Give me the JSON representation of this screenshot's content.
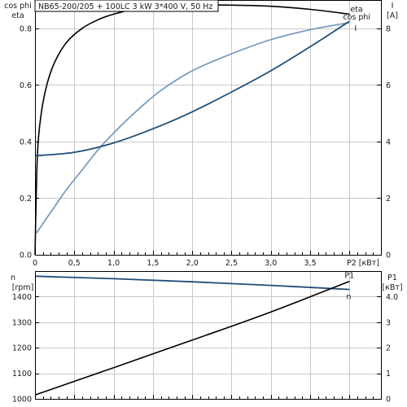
{
  "title": "NB65-200/205 + 100LC  3 kW  3*400 V, 50 Hz",
  "colors": {
    "eta": "#000000",
    "cosphi": "#7a9cc0",
    "current": "#1f4e79",
    "speed": "#1f4e79",
    "power": "#000000",
    "grid": "#c8c8c8"
  },
  "chart_data": [
    {
      "type": "line",
      "xlabel": "P2 [кВт]",
      "xlim": [
        0,
        4.4
      ],
      "x_ticks": [
        "0",
        "0,5",
        "1,0",
        "1,5",
        "2,0",
        "2,5",
        "3,0",
        "3,5"
      ],
      "ylabel_left": [
        "cos phi",
        "eta"
      ],
      "ylim_left": [
        0,
        0.9
      ],
      "y_ticks_left": [
        "0.0",
        "0.2",
        "0.4",
        "0.6",
        "0.8"
      ],
      "ylabel_right": [
        "I",
        "[A]"
      ],
      "ylim_right": [
        0,
        9
      ],
      "y_ticks_right": [
        "0",
        "2",
        "4",
        "6",
        "8"
      ],
      "grid": true,
      "series": [
        {
          "name": "eta",
          "axis": "left",
          "x": [
            0,
            0.03,
            0.08,
            0.15,
            0.25,
            0.4,
            0.6,
            0.8,
            1.0,
            1.3,
            1.6,
            2.0,
            2.5,
            3.0,
            3.5,
            4.0
          ],
          "y": [
            0,
            0.35,
            0.5,
            0.6,
            0.68,
            0.75,
            0.8,
            0.83,
            0.85,
            0.87,
            0.878,
            0.882,
            0.882,
            0.878,
            0.867,
            0.85
          ]
        },
        {
          "name": "cos phi",
          "axis": "left",
          "x": [
            0,
            0.2,
            0.4,
            0.6,
            0.8,
            1.0,
            1.3,
            1.6,
            2.0,
            2.5,
            3.0,
            3.5,
            4.0
          ],
          "y": [
            0.07,
            0.15,
            0.23,
            0.3,
            0.37,
            0.43,
            0.51,
            0.58,
            0.65,
            0.71,
            0.76,
            0.795,
            0.82
          ]
        },
        {
          "name": "I",
          "axis": "right",
          "x": [
            0,
            0.5,
            1.0,
            1.5,
            2.0,
            2.5,
            3.0,
            3.5,
            4.0
          ],
          "y": [
            3.5,
            3.62,
            3.95,
            4.45,
            5.05,
            5.75,
            6.5,
            7.35,
            8.25
          ]
        }
      ]
    },
    {
      "type": "line",
      "xlim": [
        0,
        4.4
      ],
      "ylabel_left": [
        "n",
        "[rpm]"
      ],
      "ylim_left": [
        1000,
        1500
      ],
      "y_ticks_left": [
        "1000",
        "1100",
        "1200",
        "1300",
        "1400"
      ],
      "ylabel_right": [
        "P1",
        "[кВт]"
      ],
      "ylim_right": [
        0,
        5
      ],
      "y_ticks_right": [
        "0",
        "1",
        "2",
        "3",
        "4.0"
      ],
      "grid": true,
      "series": [
        {
          "name": "n",
          "axis": "left",
          "x": [
            0,
            1.0,
            2.0,
            3.0,
            4.0
          ],
          "y": [
            1480,
            1470,
            1458,
            1444,
            1428
          ]
        },
        {
          "name": "P1",
          "axis": "right",
          "x": [
            0,
            1.0,
            2.0,
            3.0,
            4.0
          ],
          "y": [
            0.15,
            1.22,
            2.3,
            3.4,
            4.6
          ]
        }
      ]
    }
  ]
}
